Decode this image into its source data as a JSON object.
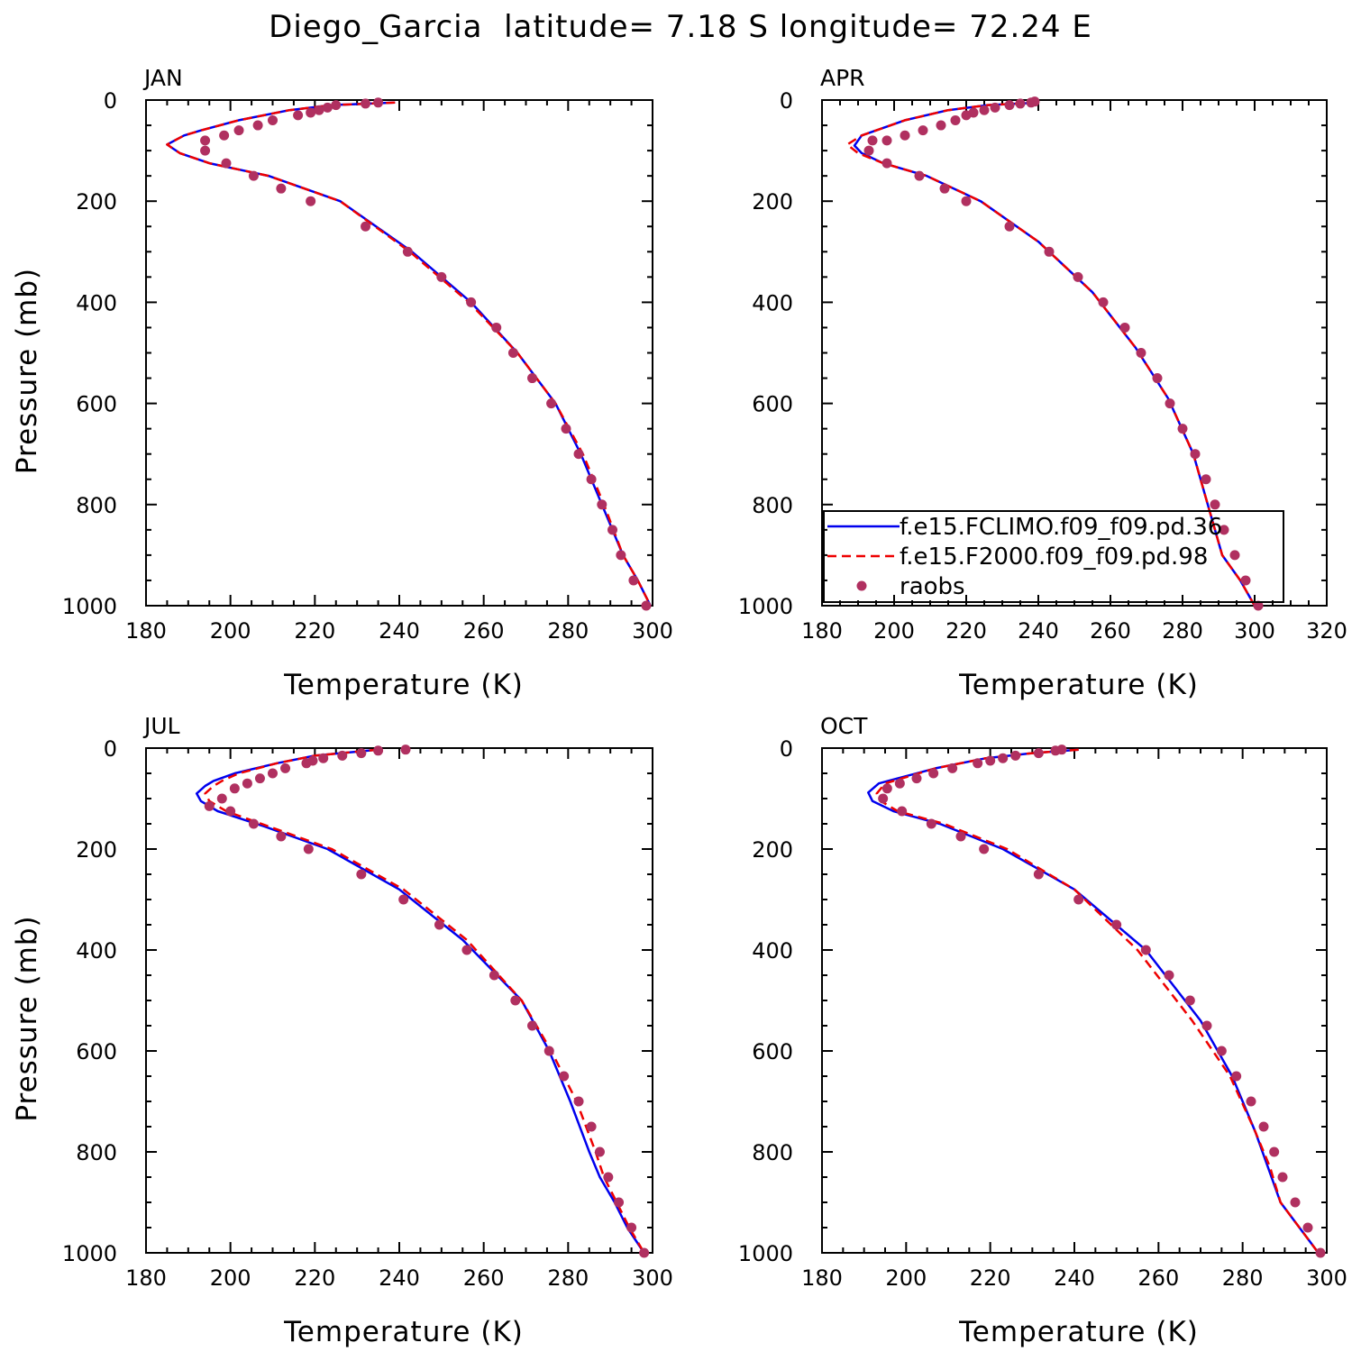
{
  "title": "Diego_Garcia  latitude= 7.18 S longitude= 72.24 E",
  "colors": {
    "model_1": "#0000ee",
    "model_2": "#ee0000",
    "raobs": "#b03060",
    "axes": "#000000"
  },
  "legend": {
    "placement": "bottom-left of APR panel",
    "entries": [
      {
        "label": "f.e15.FCLIMO.f09_f09.pd.36",
        "style": "solid",
        "color": "#0000ee"
      },
      {
        "label": "f.e15.F2000.f09_f09.pd.98",
        "style": "dashed",
        "color": "#ee0000"
      },
      {
        "label": "raobs",
        "style": "marker",
        "color": "#b03060"
      }
    ]
  },
  "chart_data": [
    {
      "type": "line",
      "panel": "JAN",
      "xlabel": "Temperature (K)",
      "ylabel": "Pressure (mb)",
      "xlim": [
        180,
        300
      ],
      "ylim": [
        1000,
        0
      ],
      "xticks": [
        "180",
        "200",
        "220",
        "240",
        "260",
        "280",
        "300"
      ],
      "yticks": [
        "0",
        "200",
        "400",
        "600",
        "800",
        "1000"
      ],
      "show_ylabel": true,
      "series": [
        {
          "name": "f.e15.FCLIMO.f09_f09.pd.36",
          "style": "solid",
          "x": [
            239,
            224,
            214,
            202,
            193,
            189,
            185,
            188,
            195,
            209,
            226,
            243,
            257,
            268,
            277,
            283,
            288,
            293,
            296.5,
            299.5
          ],
          "y": [
            5,
            10,
            20,
            40,
            60,
            70,
            88,
            105,
            125,
            150,
            200,
            300,
            400,
            500,
            600,
            700,
            800,
            900,
            950,
            1000
          ]
        },
        {
          "name": "f.e15.F2000.f09_f09.pd.98",
          "style": "dashed",
          "x": [
            239,
            224,
            214,
            202,
            193,
            189,
            185,
            188,
            195,
            209,
            226,
            242.5,
            256.5,
            268,
            277,
            283.5,
            288.5,
            293,
            296.5,
            299.5
          ],
          "y": [
            5,
            10,
            20,
            40,
            60,
            70,
            88,
            105,
            125,
            150,
            200,
            300,
            400,
            500,
            600,
            700,
            800,
            900,
            950,
            1000
          ]
        },
        {
          "name": "raobs",
          "style": "marker",
          "x": [
            235,
            232,
            225,
            223,
            221,
            219,
            216,
            210,
            206.5,
            202,
            198.5,
            194,
            194,
            199,
            205.5,
            212,
            219,
            232,
            242,
            250,
            257,
            263,
            267,
            271.5,
            276,
            279.5,
            282.5,
            285.5,
            288,
            290.5,
            292.5,
            295.5,
            298.5
          ],
          "y": [
            5,
            7,
            10,
            15,
            20,
            25,
            30,
            40,
            50,
            60,
            70,
            80,
            100,
            125,
            150,
            175,
            200,
            250,
            300,
            350,
            400,
            450,
            500,
            550,
            600,
            650,
            700,
            750,
            800,
            850,
            900,
            950,
            1000
          ]
        }
      ]
    },
    {
      "type": "line",
      "panel": "APR",
      "xlabel": "Temperature (K)",
      "ylabel": "",
      "xlim": [
        180,
        320
      ],
      "ylim": [
        1000,
        0
      ],
      "xticks": [
        "180",
        "200",
        "220",
        "240",
        "260",
        "280",
        "300",
        "320"
      ],
      "yticks": [
        "0",
        "200",
        "400",
        "600",
        "800",
        "1000"
      ],
      "show_ylabel": false,
      "series": [
        {
          "name": "f.e15.FCLIMO.f09_f09.pd.36",
          "style": "solid",
          "x": [
            240,
            226,
            215,
            203,
            195,
            191,
            189,
            191,
            197,
            209,
            224,
            240,
            255,
            267,
            276,
            283,
            287,
            291,
            296,
            300
          ],
          "y": [
            5,
            10,
            20,
            40,
            60,
            70,
            90,
            105,
            125,
            150,
            200,
            280,
            380,
            490,
            590,
            700,
            800,
            900,
            950,
            1000
          ]
        },
        {
          "name": "f.e15.F2000.f09_f09.pd.98",
          "style": "dashed",
          "x": [
            240,
            226,
            215,
            203,
            195,
            191,
            187,
            190,
            197,
            209,
            224,
            240,
            255,
            267,
            276,
            283,
            287,
            291,
            296,
            300
          ],
          "y": [
            5,
            10,
            20,
            40,
            60,
            70,
            88,
            105,
            125,
            150,
            200,
            280,
            380,
            490,
            590,
            700,
            800,
            900,
            950,
            1000
          ]
        },
        {
          "name": "raobs",
          "style": "marker",
          "x": [
            239,
            238,
            235,
            232,
            228,
            225,
            222,
            220,
            217,
            213,
            208,
            203,
            198,
            194,
            193,
            198,
            207,
            214,
            220,
            232,
            243,
            251,
            258,
            264,
            268.5,
            273,
            276.5,
            280,
            283.5,
            286.5,
            289,
            291.5,
            294.5,
            297.5,
            301
          ],
          "y": [
            3,
            5,
            7,
            10,
            15,
            20,
            25,
            30,
            40,
            50,
            60,
            70,
            80,
            80,
            100,
            125,
            150,
            175,
            200,
            250,
            300,
            350,
            400,
            450,
            500,
            550,
            600,
            650,
            700,
            750,
            800,
            850,
            900,
            950,
            1000
          ]
        }
      ]
    },
    {
      "type": "line",
      "panel": "JUL",
      "xlabel": "Temperature (K)",
      "ylabel": "Pressure (mb)",
      "xlim": [
        180,
        300
      ],
      "ylim": [
        1000,
        0
      ],
      "xticks": [
        "180",
        "200",
        "220",
        "240",
        "260",
        "280",
        "300"
      ],
      "yticks": [
        "0",
        "200",
        "400",
        "600",
        "800",
        "1000"
      ],
      "show_ylabel": true,
      "series": [
        {
          "name": "f.e15.FCLIMO.f09_f09.pd.36",
          "style": "solid",
          "x": [
            235,
            220,
            211,
            201,
            196,
            194,
            192,
            193,
            197,
            208,
            223,
            240,
            255,
            269,
            275.5,
            280.5,
            285,
            287.5,
            291,
            294,
            298
          ],
          "y": [
            3,
            15,
            30,
            50,
            65,
            75,
            90,
            105,
            125,
            155,
            200,
            280,
            380,
            500,
            600,
            700,
            800,
            850,
            900,
            950,
            1000
          ]
        },
        {
          "name": "f.e15.F2000.f09_f09.pd.98",
          "style": "dashed",
          "x": [
            235,
            220,
            211,
            202,
            198,
            196,
            194,
            195,
            199,
            209,
            224,
            241,
            256,
            269,
            276,
            282,
            286.5,
            288.5,
            291.5,
            294.5,
            298
          ],
          "y": [
            3,
            15,
            30,
            50,
            65,
            75,
            90,
            105,
            125,
            155,
            200,
            280,
            380,
            500,
            600,
            700,
            800,
            850,
            900,
            950,
            1000
          ]
        },
        {
          "name": "raobs",
          "style": "marker",
          "x": [
            241.5,
            235,
            231,
            226.5,
            222,
            219.5,
            218,
            213,
            210,
            207,
            204,
            201,
            198,
            195,
            200,
            205.5,
            212,
            218.5,
            231,
            241,
            249.5,
            256,
            262.5,
            267.5,
            271.5,
            275.5,
            279,
            282.5,
            285.5,
            287.5,
            289.5,
            292,
            295,
            298
          ],
          "y": [
            3,
            5,
            10,
            15,
            20,
            25,
            30,
            40,
            50,
            60,
            70,
            80,
            100,
            115,
            125,
            150,
            175,
            200,
            250,
            300,
            350,
            400,
            450,
            500,
            550,
            600,
            650,
            700,
            750,
            800,
            850,
            900,
            950,
            1000
          ]
        }
      ]
    },
    {
      "type": "line",
      "panel": "OCT",
      "xlabel": "Temperature (K)",
      "ylabel": "",
      "xlim": [
        180,
        300
      ],
      "ylim": [
        1000,
        0
      ],
      "xticks": [
        "180",
        "200",
        "220",
        "240",
        "260",
        "280",
        "300"
      ],
      "yticks": [
        "0",
        "200",
        "400",
        "600",
        "800",
        "1000"
      ],
      "show_ylabel": false,
      "series": [
        {
          "name": "f.e15.FCLIMO.f09_f09.pd.36",
          "style": "solid",
          "x": [
            241,
            230,
            219,
            207,
            198,
            193.5,
            191,
            192,
            197,
            208,
            223,
            240,
            257,
            270,
            277.5,
            283,
            286,
            289,
            293.5,
            298
          ],
          "y": [
            3,
            10,
            20,
            40,
            60,
            70,
            88,
            105,
            125,
            150,
            200,
            280,
            400,
            540,
            650,
            760,
            830,
            900,
            950,
            1000
          ]
        },
        {
          "name": "f.e15.F2000.f09_f09.pd.98",
          "style": "dashed",
          "x": [
            241,
            230,
            219,
            207,
            199,
            195,
            193,
            194,
            198,
            209,
            224,
            240,
            255,
            268,
            277,
            283,
            286.5,
            289,
            293.5,
            298
          ],
          "y": [
            3,
            10,
            20,
            40,
            60,
            70,
            90,
            105,
            125,
            150,
            200,
            280,
            400,
            540,
            650,
            760,
            830,
            900,
            950,
            1000
          ]
        },
        {
          "name": "raobs",
          "style": "marker",
          "x": [
            237,
            235.5,
            231.5,
            226,
            223,
            220,
            217,
            211,
            206.5,
            202.5,
            198.5,
            195.5,
            194.5,
            199,
            206,
            213,
            218.5,
            231.5,
            241,
            250,
            257,
            262.5,
            267.5,
            271.5,
            275,
            278.5,
            282,
            285,
            287.5,
            289.5,
            292.5,
            295.5,
            298.5
          ],
          "y": [
            3,
            5,
            10,
            15,
            20,
            25,
            30,
            40,
            50,
            60,
            70,
            80,
            100,
            125,
            150,
            175,
            200,
            250,
            300,
            350,
            400,
            450,
            500,
            550,
            600,
            650,
            700,
            750,
            800,
            850,
            900,
            950,
            1000
          ]
        }
      ]
    }
  ]
}
